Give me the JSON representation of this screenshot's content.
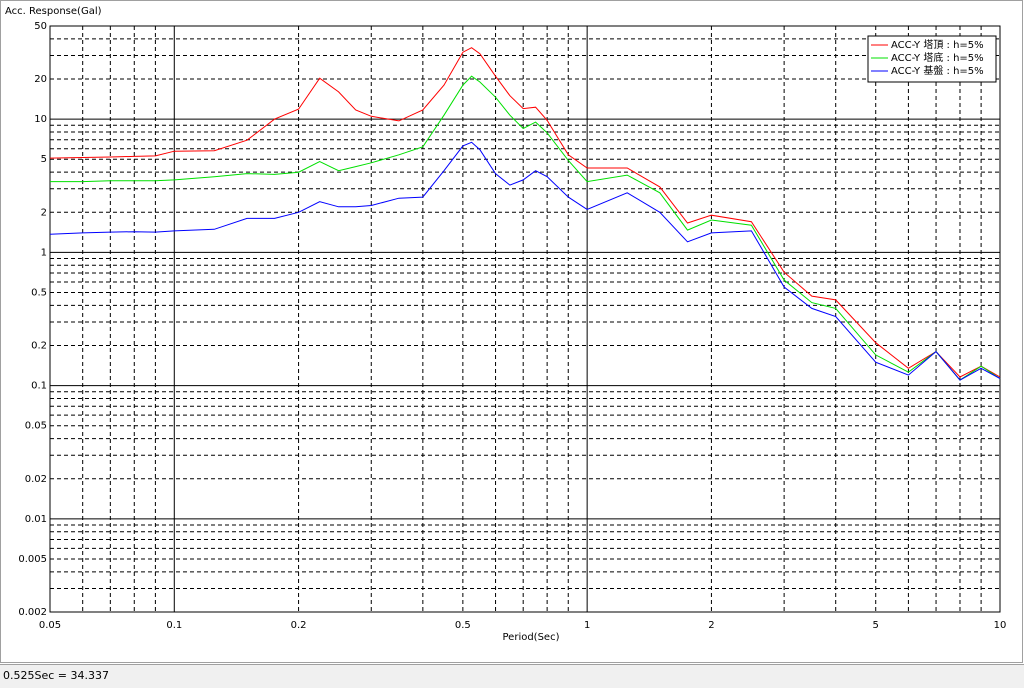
{
  "chart_data": {
    "type": "line",
    "ylabel": "Acc. Response(Gal)",
    "xlabel": "Period(Sec)",
    "status": "0.525Sec = 34.337",
    "xlog": true,
    "ylog": true,
    "grid": true,
    "legend": "upper right",
    "xlim": [
      0.05,
      10
    ],
    "ylim": [
      0.002,
      50
    ],
    "xticks": [
      0.05,
      0.1,
      0.2,
      0.5,
      1,
      2,
      5,
      10
    ],
    "yticks": [
      0.002,
      0.005,
      0.01,
      0.02,
      0.05,
      0.1,
      0.2,
      0.5,
      1,
      2,
      5,
      10,
      20,
      50
    ],
    "x": [
      0.05,
      0.06,
      0.07,
      0.08,
      0.09,
      0.1,
      0.125,
      0.15,
      0.175,
      0.2,
      0.225,
      0.25,
      0.275,
      0.3,
      0.35,
      0.4,
      0.45,
      0.5,
      0.525,
      0.55,
      0.6,
      0.65,
      0.7,
      0.75,
      0.8,
      0.9,
      1,
      1.25,
      1.5,
      1.75,
      2,
      2.5,
      3,
      3.5,
      4,
      5,
      6,
      7,
      8,
      9,
      10
    ],
    "series": [
      {
        "name": "ACC-Y 塔頂 : h=5%",
        "color": "#ff0000",
        "values": [
          5.1,
          5.15,
          5.2,
          5.25,
          5.3,
          5.75,
          5.8,
          6.95,
          10,
          11.9,
          20.3,
          16,
          11.7,
          10.5,
          9.7,
          11.7,
          18,
          31.8,
          34.337,
          31,
          21,
          15,
          12,
          12.3,
          9.8,
          5.4,
          4.3,
          4.3,
          3.1,
          1.66,
          1.9,
          1.7,
          0.71,
          0.47,
          0.44,
          0.21,
          0.135,
          0.18,
          0.116,
          0.14,
          0.116
        ]
      },
      {
        "name": "ACC-Y 塔底 : h=5%",
        "color": "#00e000",
        "values": [
          3.4,
          3.4,
          3.45,
          3.45,
          3.45,
          3.5,
          3.7,
          3.9,
          3.85,
          4,
          4.8,
          4.1,
          4.4,
          4.7,
          5.4,
          6.2,
          10.7,
          18,
          21,
          19,
          14.6,
          10.7,
          8.5,
          9.5,
          7.9,
          4.9,
          3.4,
          3.8,
          2.8,
          1.47,
          1.75,
          1.6,
          0.62,
          0.42,
          0.38,
          0.17,
          0.126,
          0.18,
          0.11,
          0.14,
          0.113
        ]
      },
      {
        "name": "ACC-Y 基盤 : h=5%",
        "color": "#0000ff",
        "values": [
          1.37,
          1.4,
          1.42,
          1.43,
          1.42,
          1.45,
          1.49,
          1.8,
          1.8,
          2.0,
          2.4,
          2.2,
          2.2,
          2.25,
          2.55,
          2.6,
          4.1,
          6.3,
          6.7,
          5.9,
          3.9,
          3.2,
          3.5,
          4.1,
          3.7,
          2.6,
          2.1,
          2.8,
          2.0,
          1.2,
          1.4,
          1.45,
          0.55,
          0.38,
          0.33,
          0.15,
          0.12,
          0.18,
          0.11,
          0.135,
          0.113
        ]
      }
    ]
  }
}
